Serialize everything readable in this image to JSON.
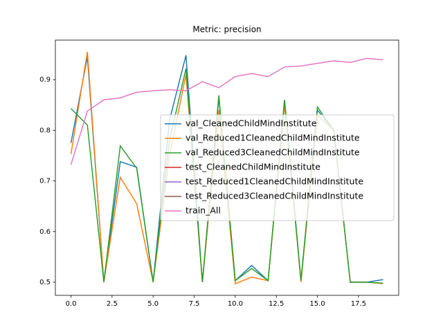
{
  "chart_data": {
    "type": "line",
    "title": "Metric: precision",
    "x": [
      0,
      1,
      2,
      3,
      4,
      5,
      6,
      7,
      8,
      9,
      10,
      11,
      12,
      13,
      14,
      15,
      16,
      17,
      18,
      19
    ],
    "series": [
      {
        "name": "val_CleanedChildMindInstitute",
        "color": "#1f77b4",
        "values": [
          0.775,
          0.945,
          0.5,
          0.738,
          0.727,
          0.5,
          0.82,
          0.948,
          0.5,
          0.865,
          0.503,
          0.533,
          0.503,
          0.86,
          0.503,
          0.84,
          0.8,
          0.5,
          0.5,
          0.505
        ]
      },
      {
        "name": "val_Reduced1CleanedChildMindInstitute",
        "color": "#ff7f0e",
        "values": [
          0.753,
          0.955,
          0.5,
          0.707,
          0.655,
          0.5,
          0.75,
          0.91,
          0.5,
          0.84,
          0.497,
          0.51,
          0.503,
          0.85,
          0.5,
          0.83,
          0.8,
          0.5,
          0.5,
          0.497
        ]
      },
      {
        "name": "val_Reduced3CleanedChildMindInstitute",
        "color": "#2ca02c",
        "values": [
          0.843,
          0.81,
          0.5,
          0.769,
          0.725,
          0.5,
          0.78,
          0.922,
          0.5,
          0.869,
          0.503,
          0.527,
          0.503,
          0.86,
          0.503,
          0.846,
          0.8,
          0.5,
          0.5,
          0.498
        ]
      },
      {
        "name": "test_CleanedChildMindInstitute",
        "color": "#d62728",
        "values": [
          null,
          null,
          null,
          null,
          null,
          null,
          null,
          null,
          null,
          null,
          null,
          null,
          null,
          null,
          null,
          null,
          null,
          null,
          null,
          null
        ]
      },
      {
        "name": "test_Reduced1CleanedChildMindInstitute",
        "color": "#9467bd",
        "values": [
          null,
          null,
          null,
          null,
          null,
          null,
          null,
          null,
          null,
          null,
          null,
          null,
          null,
          null,
          null,
          null,
          null,
          null,
          null,
          null
        ]
      },
      {
        "name": "test_Reduced3CleanedChildMindInstitute",
        "color": "#8c564b",
        "values": [
          null,
          null,
          null,
          null,
          null,
          null,
          null,
          null,
          null,
          null,
          null,
          null,
          null,
          null,
          null,
          null,
          null,
          null,
          null,
          null
        ]
      },
      {
        "name": "train_All",
        "color": "#e377c2",
        "values": [
          0.732,
          0.838,
          0.86,
          0.864,
          0.875,
          0.878,
          0.88,
          0.878,
          0.896,
          0.884,
          0.906,
          0.912,
          0.906,
          0.925,
          0.927,
          0.932,
          0.937,
          0.934,
          0.942,
          0.939
        ]
      }
    ],
    "xlim": [
      -0.95,
      19.95
    ],
    "ylim": [
      0.474,
      0.978
    ],
    "xticks": [
      {
        "value": 0,
        "label": "0.0"
      },
      {
        "value": 2.5,
        "label": "2.5"
      },
      {
        "value": 5,
        "label": "5.0"
      },
      {
        "value": 7.5,
        "label": "7.5"
      },
      {
        "value": 10,
        "label": "10.0"
      },
      {
        "value": 12.5,
        "label": "12.5"
      },
      {
        "value": 15,
        "label": "15.0"
      },
      {
        "value": 17.5,
        "label": "17.5"
      }
    ],
    "yticks": [
      0.5,
      0.6,
      0.7,
      0.8,
      0.9
    ],
    "grid": false,
    "legend": "center right"
  }
}
